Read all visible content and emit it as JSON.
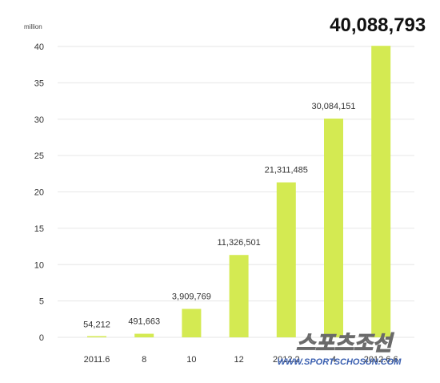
{
  "chart_data": {
    "type": "bar",
    "y_unit_label": "million",
    "categories": [
      "2011.6",
      "8",
      "10",
      "12",
      "2012.2",
      "4",
      "2012.6.6"
    ],
    "values": [
      54212,
      491663,
      3909769,
      11326501,
      21311485,
      30084151,
      40088793
    ],
    "value_labels": [
      "54,212",
      "491,663",
      "3,909,769",
      "11,326,501",
      "21,311,485",
      "30,084,151",
      "40,088,793"
    ],
    "highlight_index": 6,
    "y_ticks": [
      0,
      5,
      10,
      15,
      20,
      25,
      30,
      35,
      40
    ],
    "ylim": [
      0,
      40
    ],
    "grid": true,
    "bar_color": "#d4ea52",
    "grid_color": "#e6e6e6"
  },
  "watermark": {
    "brand": "스포츠조선",
    "url": "WWW.SPORTSCHOSUN.COM"
  }
}
